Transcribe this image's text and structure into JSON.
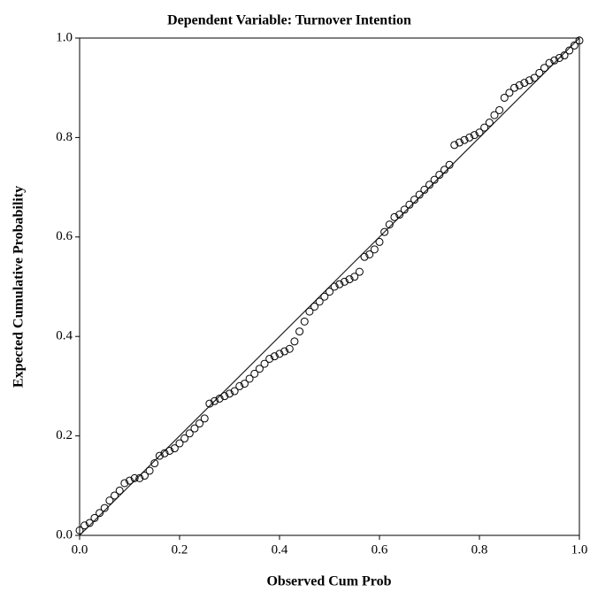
{
  "chart_data": {
    "type": "scatter",
    "title": "Dependent Variable: Turnover Intention",
    "x_label": "Observed Cum Prob",
    "y_label": "Expected Cumulative Probability",
    "xlim": [
      0,
      1
    ],
    "ylim": [
      0,
      1
    ],
    "xticks": [
      {
        "value": 0,
        "label": "0.0"
      },
      0.2,
      0.4,
      0.6,
      0.8,
      {
        "value": 1,
        "label": "1.0"
      }
    ],
    "yticks": [
      {
        "value": 0,
        "label": "0.0"
      },
      0.2,
      0.4,
      0.6,
      0.8,
      {
        "value": 1,
        "label": "1.0"
      }
    ],
    "diagonal": true,
    "color": "#000000",
    "x": [
      0.0,
      0.01,
      0.02,
      0.03,
      0.04,
      0.05,
      0.06,
      0.07,
      0.08,
      0.09,
      0.1,
      0.11,
      0.12,
      0.13,
      0.14,
      0.15,
      0.16,
      0.17,
      0.18,
      0.19,
      0.2,
      0.21,
      0.22,
      0.23,
      0.24,
      0.25,
      0.26,
      0.27,
      0.28,
      0.29,
      0.3,
      0.31,
      0.32,
      0.33,
      0.34,
      0.35,
      0.36,
      0.37,
      0.38,
      0.39,
      0.4,
      0.41,
      0.42,
      0.43,
      0.44,
      0.45,
      0.46,
      0.47,
      0.48,
      0.49,
      0.5,
      0.51,
      0.52,
      0.53,
      0.54,
      0.55,
      0.56,
      0.57,
      0.58,
      0.59,
      0.6,
      0.61,
      0.62,
      0.63,
      0.64,
      0.65,
      0.66,
      0.67,
      0.68,
      0.69,
      0.7,
      0.71,
      0.72,
      0.73,
      0.74,
      0.75,
      0.76,
      0.77,
      0.78,
      0.79,
      0.8,
      0.81,
      0.82,
      0.83,
      0.84,
      0.85,
      0.86,
      0.87,
      0.88,
      0.89,
      0.9,
      0.91,
      0.92,
      0.93,
      0.94,
      0.95,
      0.96,
      0.97,
      0.98,
      0.99,
      1.0
    ],
    "values": [
      0.01,
      0.02,
      0.025,
      0.035,
      0.045,
      0.055,
      0.07,
      0.08,
      0.09,
      0.105,
      0.11,
      0.115,
      0.115,
      0.12,
      0.13,
      0.145,
      0.16,
      0.165,
      0.17,
      0.175,
      0.185,
      0.195,
      0.205,
      0.215,
      0.225,
      0.235,
      0.265,
      0.27,
      0.275,
      0.28,
      0.285,
      0.29,
      0.3,
      0.305,
      0.315,
      0.325,
      0.335,
      0.345,
      0.355,
      0.36,
      0.365,
      0.37,
      0.375,
      0.39,
      0.41,
      0.43,
      0.45,
      0.46,
      0.47,
      0.48,
      0.49,
      0.5,
      0.505,
      0.51,
      0.515,
      0.52,
      0.53,
      0.56,
      0.565,
      0.575,
      0.59,
      0.61,
      0.625,
      0.64,
      0.645,
      0.655,
      0.665,
      0.675,
      0.685,
      0.695,
      0.705,
      0.715,
      0.725,
      0.735,
      0.745,
      0.785,
      0.79,
      0.795,
      0.8,
      0.805,
      0.81,
      0.82,
      0.83,
      0.845,
      0.855,
      0.88,
      0.89,
      0.9,
      0.905,
      0.91,
      0.915,
      0.92,
      0.93,
      0.94,
      0.95,
      0.955,
      0.96,
      0.965,
      0.975,
      0.985,
      0.995
    ]
  }
}
